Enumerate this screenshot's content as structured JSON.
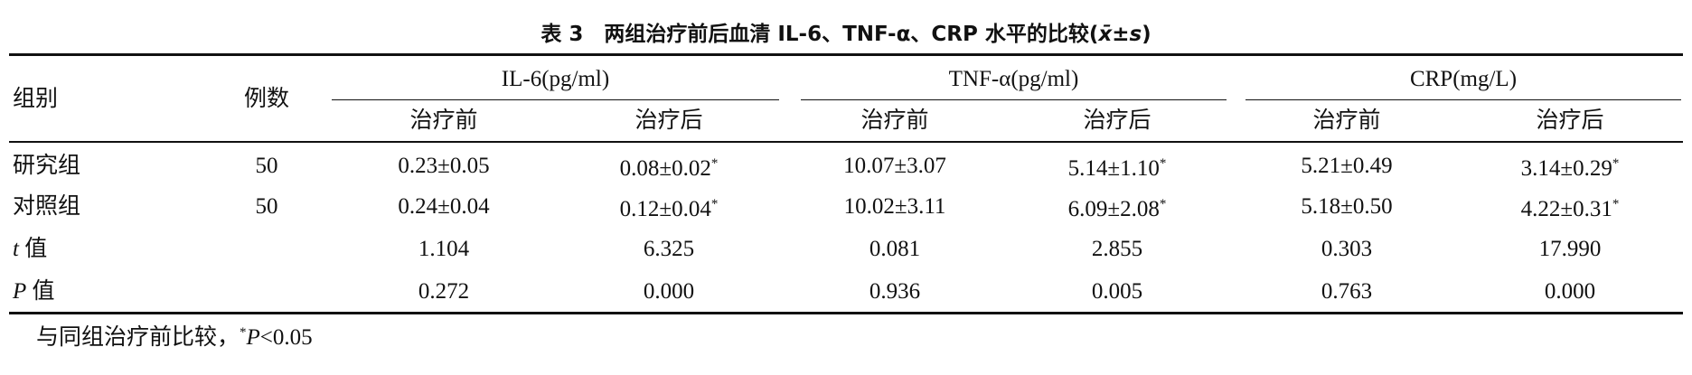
{
  "header": {
    "title": "表 3　两组治疗前后血清 IL-6、TNF-α、CRP 水平的比较(",
    "title_stat": "x̄±s",
    "title_end": ")"
  },
  "table": {
    "col_group": "组别",
    "col_n": "例数",
    "groups": [
      {
        "name": "IL-6(pg/ml)",
        "sub": [
          "治疗前",
          "治疗后"
        ]
      },
      {
        "name": "TNF-α(pg/ml)",
        "sub": [
          "治疗前",
          "治疗后"
        ]
      },
      {
        "name": "CRP(mg/L)",
        "sub": [
          "治疗前",
          "治疗后"
        ]
      }
    ],
    "rows": [
      {
        "label": "研究组",
        "n": "50",
        "cells": [
          {
            "value": "0.23±0.05"
          },
          {
            "value": "0.08±0.02",
            "mark": "*"
          },
          {
            "value": "10.07±3.07"
          },
          {
            "value": "5.14±1.10",
            "mark": "*"
          },
          {
            "value": "5.21±0.49"
          },
          {
            "value": "3.14±0.29",
            "mark": "*"
          }
        ]
      },
      {
        "label": "对照组",
        "n": "50",
        "cells": [
          {
            "value": "0.24±0.04"
          },
          {
            "value": "0.12±0.04",
            "mark": "*"
          },
          {
            "value": "10.02±3.11"
          },
          {
            "value": "6.09±2.08",
            "mark": "*"
          },
          {
            "value": "5.18±0.50"
          },
          {
            "value": "4.22±0.31",
            "mark": "*"
          }
        ]
      },
      {
        "symbol": "t",
        "label": "值",
        "cells": [
          {
            "value": "1.104"
          },
          {
            "value": "6.325"
          },
          {
            "value": "0.081"
          },
          {
            "value": "2.855"
          },
          {
            "value": "0.303"
          },
          {
            "value": "17.990"
          }
        ]
      },
      {
        "symbol": "P",
        "label": "值",
        "cells": [
          {
            "value": "0.272"
          },
          {
            "value": "0.000"
          },
          {
            "value": "0.936"
          },
          {
            "value": "0.005"
          },
          {
            "value": "0.763"
          },
          {
            "value": "0.000"
          }
        ]
      }
    ]
  },
  "footnote": {
    "text": "与同组治疗前比较，",
    "mark": "*",
    "symbol": "P",
    "rest": "<0.05"
  }
}
